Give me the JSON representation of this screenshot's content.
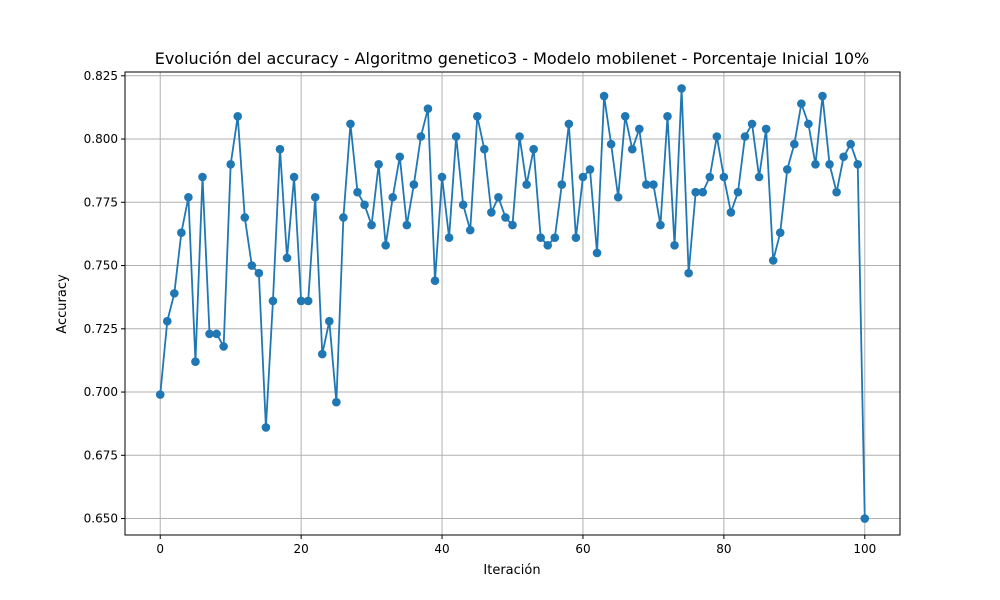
{
  "chart_data": {
    "type": "line",
    "title": "Evolución del accuracy - Algoritmo genetico3 - Modelo mobilenet - Porcentaje Inicial 10%",
    "xlabel": "Iteración",
    "ylabel": "Accuracy",
    "xlim": [
      -5,
      105
    ],
    "ylim": [
      0.6435,
      0.8265
    ],
    "x_ticks": [
      0,
      20,
      40,
      60,
      80,
      100
    ],
    "x_tick_labels": [
      "0",
      "20",
      "40",
      "60",
      "80",
      "100"
    ],
    "y_ticks": [
      0.65,
      0.675,
      0.7,
      0.725,
      0.75,
      0.775,
      0.8,
      0.825
    ],
    "y_tick_labels": [
      "0.650",
      "0.675",
      "0.700",
      "0.725",
      "0.750",
      "0.775",
      "0.800",
      "0.825"
    ],
    "grid": true,
    "marker": "circle",
    "line_color": "#1f77b4",
    "x": [
      0,
      1,
      2,
      3,
      4,
      5,
      6,
      7,
      8,
      9,
      10,
      11,
      12,
      13,
      14,
      15,
      16,
      17,
      18,
      19,
      20,
      21,
      22,
      23,
      24,
      25,
      26,
      27,
      28,
      29,
      30,
      31,
      32,
      33,
      34,
      35,
      36,
      37,
      38,
      39,
      40,
      41,
      42,
      43,
      44,
      45,
      46,
      47,
      48,
      49,
      50,
      51,
      52,
      53,
      54,
      55,
      56,
      57,
      58,
      59,
      60,
      61,
      62,
      63,
      64,
      65,
      66,
      67,
      68,
      69,
      70,
      71,
      72,
      73,
      74,
      75,
      76,
      77,
      78,
      79,
      80,
      81,
      82,
      83,
      84,
      85,
      86,
      87,
      88,
      89,
      90,
      91,
      92,
      93,
      94,
      95,
      96,
      97,
      98,
      99,
      100
    ],
    "values": [
      0.699,
      0.728,
      0.739,
      0.763,
      0.777,
      0.712,
      0.785,
      0.723,
      0.723,
      0.718,
      0.79,
      0.809,
      0.769,
      0.75,
      0.747,
      0.686,
      0.736,
      0.796,
      0.753,
      0.785,
      0.736,
      0.736,
      0.777,
      0.715,
      0.728,
      0.696,
      0.769,
      0.806,
      0.779,
      0.774,
      0.766,
      0.79,
      0.758,
      0.777,
      0.793,
      0.766,
      0.782,
      0.801,
      0.812,
      0.744,
      0.785,
      0.761,
      0.801,
      0.774,
      0.764,
      0.809,
      0.796,
      0.771,
      0.777,
      0.769,
      0.766,
      0.801,
      0.782,
      0.796,
      0.761,
      0.758,
      0.761,
      0.782,
      0.806,
      0.761,
      0.785,
      0.788,
      0.755,
      0.817,
      0.798,
      0.777,
      0.809,
      0.796,
      0.804,
      0.782,
      0.782,
      0.766,
      0.809,
      0.758,
      0.82,
      0.747,
      0.779,
      0.779,
      0.785,
      0.801,
      0.785,
      0.771,
      0.779,
      0.801,
      0.806,
      0.785,
      0.804,
      0.752,
      0.763,
      0.788,
      0.798,
      0.814,
      0.806,
      0.79,
      0.817,
      0.79,
      0.779,
      0.793,
      0.798,
      0.79,
      0.65
    ]
  }
}
